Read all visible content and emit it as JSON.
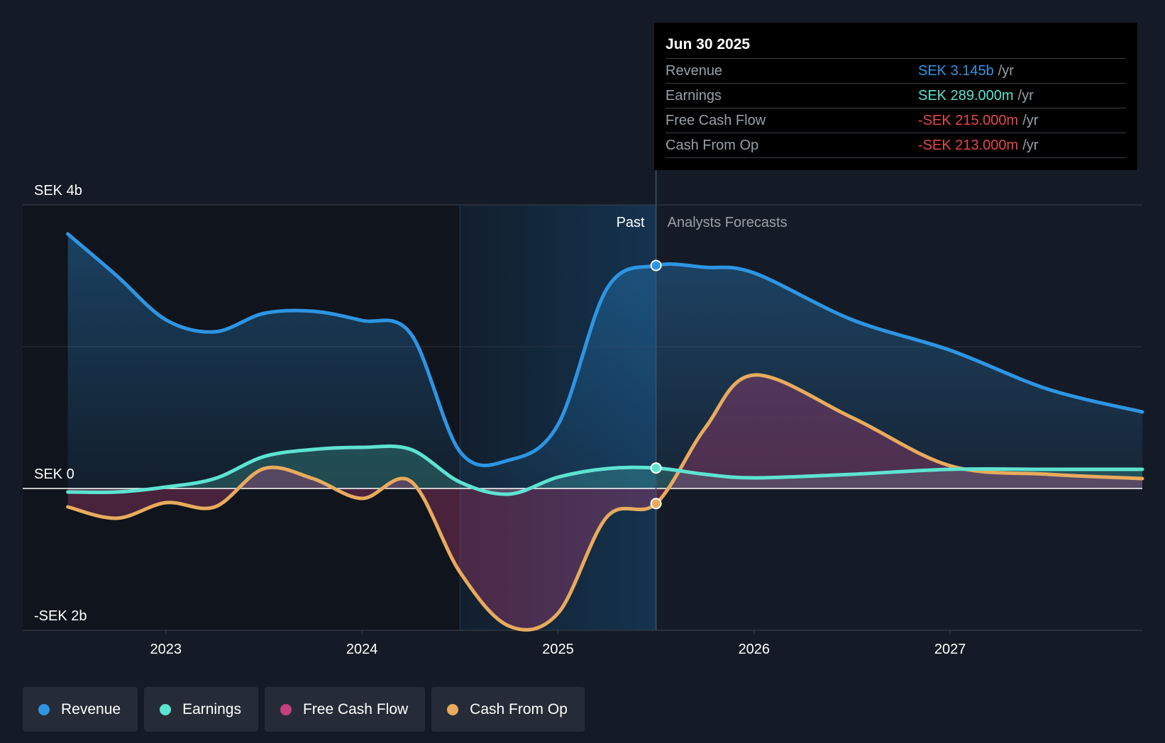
{
  "chart_data": {
    "type": "area",
    "title": "",
    "currency_unit": "SEK",
    "y_ticks": [
      {
        "value": 4,
        "label": "SEK 4b"
      },
      {
        "value": 0,
        "label": "SEK 0"
      },
      {
        "value": -2,
        "label": "-SEK 2b"
      }
    ],
    "ylim": [
      -2,
      4
    ],
    "xlim": [
      2022.27,
      2027.98
    ],
    "x_ticks": [
      {
        "value": 2023.0,
        "label": "2023"
      },
      {
        "value": 2024.0,
        "label": "2024"
      },
      {
        "value": 2025.0,
        "label": "2025"
      },
      {
        "value": 2026.0,
        "label": "2026"
      },
      {
        "value": 2027.0,
        "label": "2027"
      }
    ],
    "past_label": "Past",
    "forecast_label": "Analysts Forecasts",
    "divider_x": 2025.5,
    "highlight_start_x": 2024.5,
    "series": [
      {
        "name": "Revenue",
        "color": "#2d95e3",
        "points": [
          [
            2022.5,
            3.59
          ],
          [
            2022.75,
            3.0
          ],
          [
            2023.0,
            2.38
          ],
          [
            2023.25,
            2.21
          ],
          [
            2023.5,
            2.47
          ],
          [
            2023.75,
            2.5
          ],
          [
            2024.0,
            2.37
          ],
          [
            2024.25,
            2.18
          ],
          [
            2024.5,
            0.52
          ],
          [
            2024.75,
            0.4
          ],
          [
            2025.0,
            0.9
          ],
          [
            2025.25,
            2.82
          ],
          [
            2025.5,
            3.145
          ],
          [
            2025.75,
            3.12
          ],
          [
            2026.0,
            3.04
          ],
          [
            2026.5,
            2.38
          ],
          [
            2027.0,
            1.95
          ],
          [
            2027.5,
            1.4
          ],
          [
            2027.98,
            1.08
          ]
        ]
      },
      {
        "name": "Earnings",
        "color": "#5de3d1",
        "points": [
          [
            2022.5,
            -0.05
          ],
          [
            2022.75,
            -0.05
          ],
          [
            2023.0,
            0.02
          ],
          [
            2023.25,
            0.14
          ],
          [
            2023.5,
            0.45
          ],
          [
            2023.75,
            0.55
          ],
          [
            2024.0,
            0.58
          ],
          [
            2024.25,
            0.55
          ],
          [
            2024.5,
            0.09
          ],
          [
            2024.75,
            -0.08
          ],
          [
            2025.0,
            0.16
          ],
          [
            2025.25,
            0.28
          ],
          [
            2025.5,
            0.289
          ],
          [
            2025.75,
            0.2
          ],
          [
            2026.0,
            0.15
          ],
          [
            2026.5,
            0.2
          ],
          [
            2027.0,
            0.27
          ],
          [
            2027.5,
            0.27
          ],
          [
            2027.98,
            0.27
          ]
        ]
      },
      {
        "name": "Free Cash Flow",
        "color": "#c4407e",
        "points": [
          [
            2022.5,
            -0.26
          ],
          [
            2022.75,
            -0.42
          ],
          [
            2023.0,
            -0.2
          ],
          [
            2023.25,
            -0.26
          ],
          [
            2023.5,
            0.28
          ],
          [
            2023.75,
            0.14
          ],
          [
            2024.0,
            -0.14
          ],
          [
            2024.25,
            0.1
          ],
          [
            2024.5,
            -1.18
          ],
          [
            2024.75,
            -1.94
          ],
          [
            2025.0,
            -1.76
          ],
          [
            2025.25,
            -0.41
          ],
          [
            2025.5,
            -0.215
          ],
          [
            2025.75,
            0.85
          ],
          [
            2026.0,
            1.6
          ],
          [
            2026.5,
            1.0
          ],
          [
            2027.0,
            0.32
          ],
          [
            2027.5,
            0.2
          ],
          [
            2027.98,
            0.14
          ]
        ]
      },
      {
        "name": "Cash From Op",
        "color": "#e8ab5d",
        "points": [
          [
            2022.5,
            -0.26
          ],
          [
            2022.75,
            -0.42
          ],
          [
            2023.0,
            -0.2
          ],
          [
            2023.25,
            -0.26
          ],
          [
            2023.5,
            0.28
          ],
          [
            2023.75,
            0.14
          ],
          [
            2024.0,
            -0.14
          ],
          [
            2024.25,
            0.1
          ],
          [
            2024.5,
            -1.18
          ],
          [
            2024.75,
            -1.94
          ],
          [
            2025.0,
            -1.76
          ],
          [
            2025.25,
            -0.4
          ],
          [
            2025.5,
            -0.213
          ],
          [
            2025.75,
            0.85
          ],
          [
            2026.0,
            1.6
          ],
          [
            2026.5,
            1.0
          ],
          [
            2027.0,
            0.32
          ],
          [
            2027.5,
            0.2
          ],
          [
            2027.98,
            0.14
          ]
        ]
      }
    ]
  },
  "tooltip": {
    "date": "Jun 30 2025",
    "unit": "/yr",
    "rows": [
      {
        "label": "Revenue",
        "value": "SEK 3.145b",
        "color": "#2d95e3"
      },
      {
        "label": "Earnings",
        "value": "SEK 289.000m",
        "color": "#5de3d1"
      },
      {
        "label": "Free Cash Flow",
        "value": "-SEK 215.000m",
        "color": "#e5484d"
      },
      {
        "label": "Cash From Op",
        "value": "-SEK 213.000m",
        "color": "#e5484d"
      }
    ]
  },
  "legend": [
    {
      "label": "Revenue",
      "color": "#2d95e3"
    },
    {
      "label": "Earnings",
      "color": "#5de3d1"
    },
    {
      "label": "Free Cash Flow",
      "color": "#c4407e"
    },
    {
      "label": "Cash From Op",
      "color": "#e8ab5d"
    }
  ]
}
